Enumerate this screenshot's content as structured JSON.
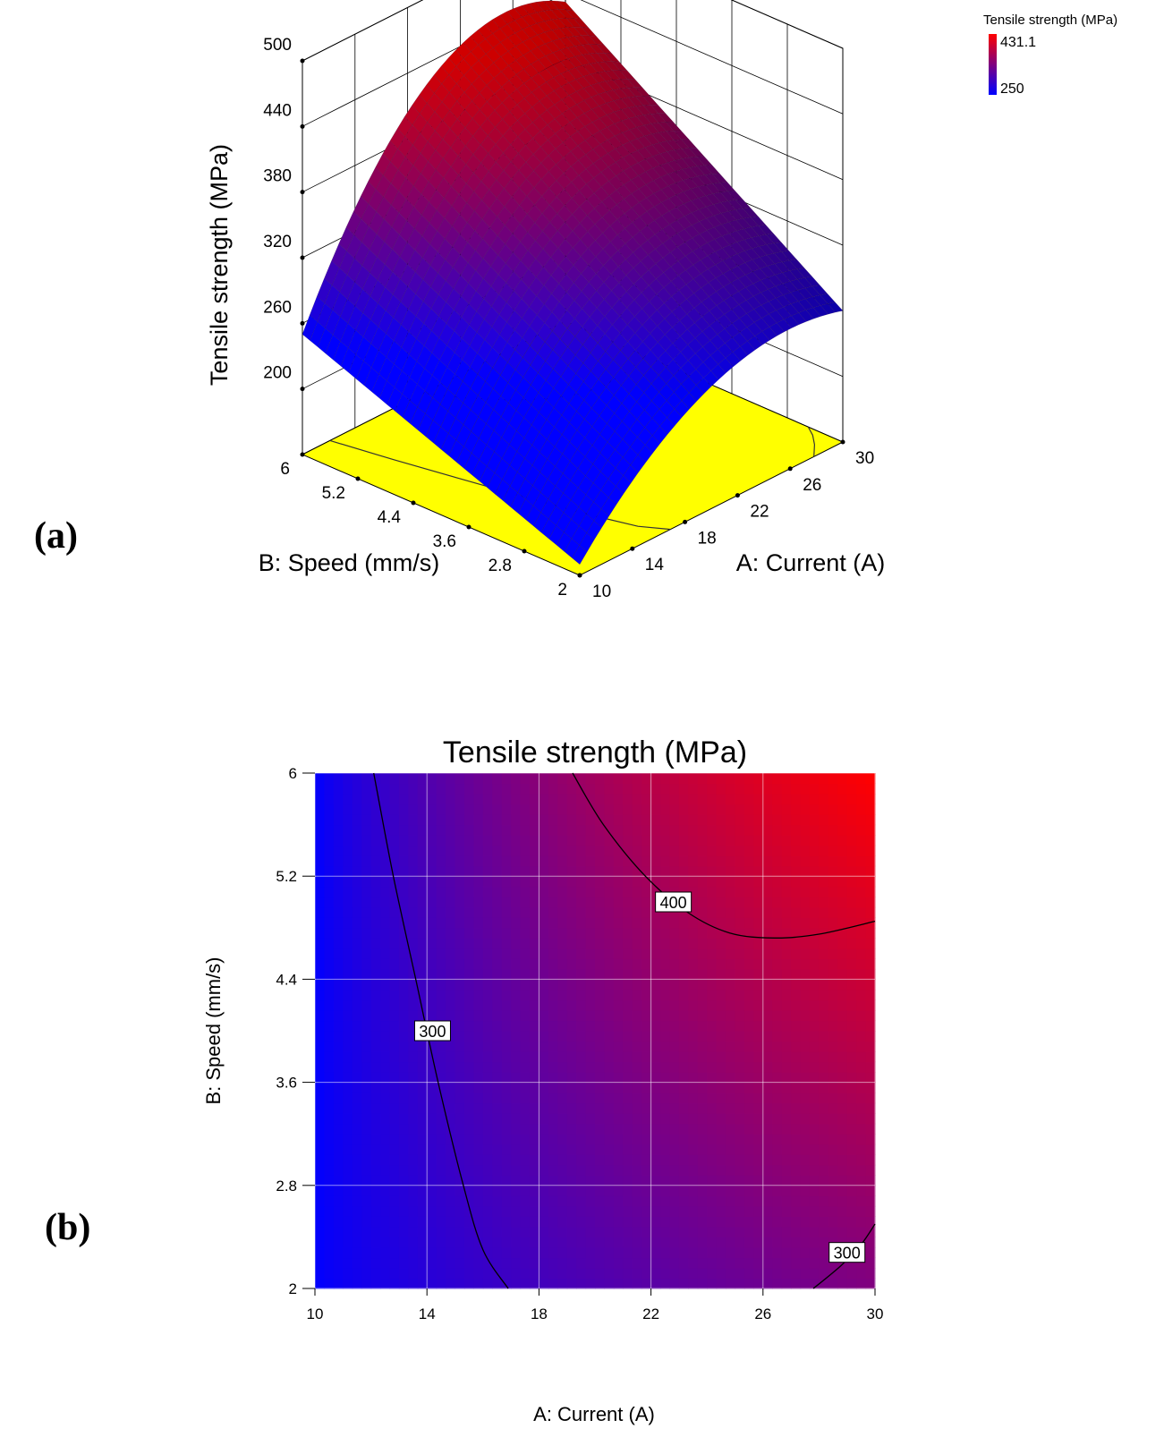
{
  "panels": {
    "a": "(a)",
    "b": "(b)"
  },
  "colors": {
    "low": "#0000ff",
    "high": "#ff0000",
    "floor": "#ffff00",
    "grid": "#000000"
  },
  "legend": {
    "title": "Tensile strength (MPa)",
    "high_value": "431.1",
    "low_value": "250",
    "high_color": "#ff0000",
    "low_color": "#0000ff"
  },
  "chart_data": [
    {
      "type": "surface",
      "xlabel": "A: Current (A)",
      "ylabel": "B: Speed (mm/s)",
      "zlabel": "Tensile strength (MPa)",
      "xlim": [
        10,
        30
      ],
      "ylim": [
        2,
        6
      ],
      "zlim": [
        140,
        500
      ],
      "x_ticks": [
        "10",
        "14",
        "18",
        "22",
        "26",
        "30"
      ],
      "y_ticks": [
        "2",
        "2.8",
        "3.6",
        "4.4",
        "5.2",
        "6"
      ],
      "z_ticks": [
        "200",
        "260",
        "320",
        "380",
        "440",
        "500"
      ],
      "corner_values": [
        {
          "x": 10,
          "y": 2,
          "z": 150
        },
        {
          "x": 10,
          "y": 6,
          "z": 250
        },
        {
          "x": 30,
          "y": 6,
          "z": 432
        },
        {
          "x": 30,
          "y": 2,
          "z": 260
        }
      ],
      "floor_color": "#ffff00",
      "grid": true
    },
    {
      "type": "contour",
      "title": "Tensile strength (MPa)",
      "xlabel": "A: Current (A)",
      "ylabel": "B: Speed (mm/s)",
      "xlim": [
        10,
        30
      ],
      "ylim": [
        2,
        6
      ],
      "x_ticks": [
        "10",
        "14",
        "18",
        "22",
        "26",
        "30"
      ],
      "y_ticks": [
        "2",
        "2.8",
        "3.6",
        "4.4",
        "5.2",
        "6"
      ],
      "grid": true,
      "contours": [
        {
          "level": "300",
          "points": [
            [
              12.1,
              6
            ],
            [
              12.8,
              5.2
            ],
            [
              13.6,
              4.4
            ],
            [
              14.4,
              3.6
            ],
            [
              15.3,
              2.8
            ],
            [
              16.0,
              2.3
            ],
            [
              16.9,
              2
            ]
          ]
        },
        {
          "level": "400",
          "points": [
            [
              19.2,
              6
            ],
            [
              20.3,
              5.6
            ],
            [
              21.8,
              5.2
            ],
            [
              23.3,
              4.92
            ],
            [
              24.8,
              4.76
            ],
            [
              26.4,
              4.72
            ],
            [
              28.0,
              4.75
            ],
            [
              30,
              4.85
            ]
          ]
        },
        {
          "level": "300",
          "points": [
            [
              27.8,
              2
            ],
            [
              28.8,
              2.18
            ],
            [
              29.5,
              2.34
            ],
            [
              30,
              2.5
            ]
          ]
        }
      ],
      "contour_labels": [
        {
          "text": "300",
          "x": 14.2,
          "y": 4.0
        },
        {
          "text": "400",
          "x": 22.8,
          "y": 5.0
        },
        {
          "text": "300",
          "x": 29.0,
          "y": 2.28
        }
      ]
    }
  ]
}
